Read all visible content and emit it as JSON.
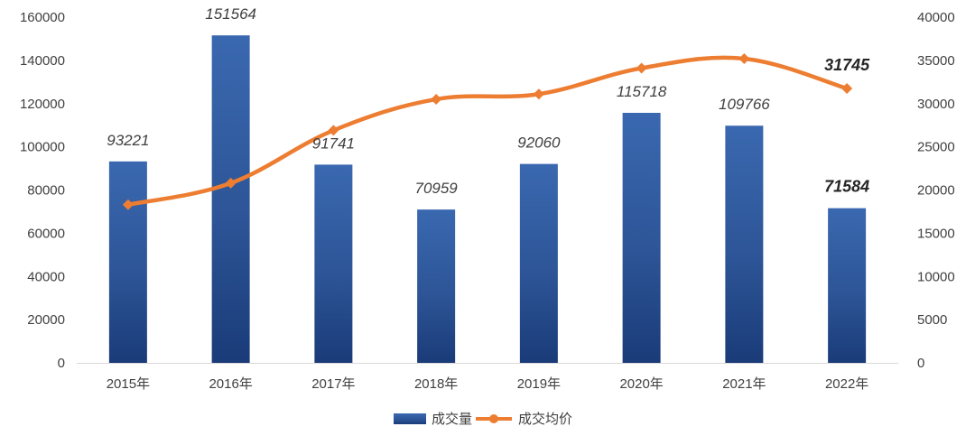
{
  "chart_data": {
    "type": "bar+line",
    "categories": [
      "2015年",
      "2016年",
      "2017年",
      "2018年",
      "2019年",
      "2020年",
      "2021年",
      "2022年"
    ],
    "series": [
      {
        "name": "成交量",
        "type": "bar",
        "axis": "left",
        "color": "#2e5597",
        "values": [
          93221,
          151564,
          91741,
          70959,
          92060,
          115718,
          109766,
          71584
        ],
        "labels": [
          "93221",
          "151564",
          "91741",
          "70959",
          "92060",
          "115718",
          "109766",
          "71584"
        ]
      },
      {
        "name": "成交均价",
        "type": "line",
        "axis": "right",
        "color": "#ed7d31",
        "values": [
          18300,
          20800,
          26900,
          30500,
          31100,
          34100,
          35200,
          31745
        ],
        "labels": [
          "",
          "",
          "",
          "",
          "",
          "",
          "",
          "31745"
        ]
      }
    ],
    "y_left": {
      "min": 0,
      "max": 160000,
      "ticks": [
        "0",
        "20000",
        "40000",
        "60000",
        "80000",
        "100000",
        "120000",
        "140000",
        "160000"
      ]
    },
    "y_right": {
      "min": 0,
      "max": 40000,
      "ticks": [
        "0",
        "5000",
        "10000",
        "15000",
        "20000",
        "25000",
        "30000",
        "35000",
        "40000"
      ]
    },
    "highlight_index": 7,
    "legend_position": "bottom",
    "grid": false
  }
}
